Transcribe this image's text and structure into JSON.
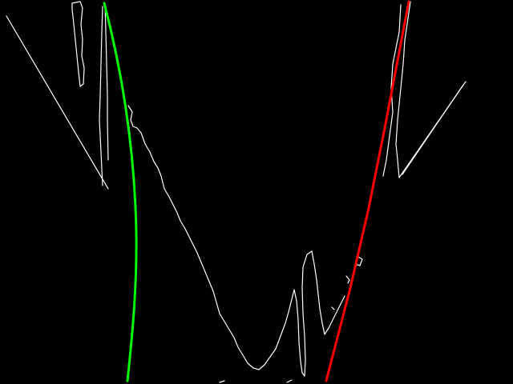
{
  "image": {
    "background_color": "#000000"
  },
  "overlay": {
    "edge_color": "#ffffff",
    "left_fit_color": "#00ff00",
    "right_fit_color": "#ff0000"
  }
}
